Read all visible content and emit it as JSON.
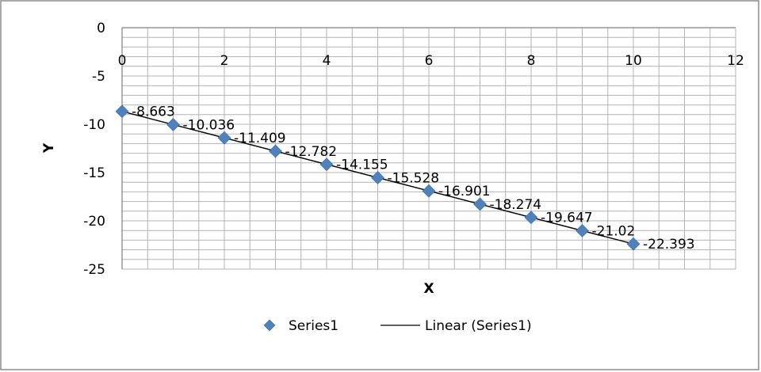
{
  "chart_data": {
    "type": "scatter",
    "title": "",
    "xlabel": "X",
    "ylabel": "Y",
    "xlim": [
      0,
      12
    ],
    "ylim": [
      -25,
      0
    ],
    "x_ticks": [
      "0",
      "2",
      "4",
      "6",
      "8",
      "10",
      "12"
    ],
    "y_ticks": [
      "0",
      "-5",
      "-10",
      "-15",
      "-20",
      "-25"
    ],
    "x_minor_step": 0.5,
    "y_minor_step": 1,
    "grid": true,
    "legend_position": "bottom",
    "series": [
      {
        "name": "Series1",
        "marker": "diamond",
        "color": "#4F81BD",
        "x": [
          0,
          1,
          2,
          3,
          4,
          5,
          6,
          7,
          8,
          9,
          10
        ],
        "y": [
          -8.663,
          -10.036,
          -11.409,
          -12.782,
          -14.155,
          -15.528,
          -16.901,
          -18.274,
          -19.647,
          -21.02,
          -22.393
        ],
        "data_labels": [
          "-8.663",
          "-10.036",
          "-11.409",
          "-12.782",
          "-14.155",
          "-15.528",
          "-16.901",
          "-18.274",
          "-19.647",
          "-21.02",
          "-22.393"
        ]
      }
    ],
    "trendline": {
      "name": "Linear (Series1)",
      "type": "linear",
      "color": "#000000",
      "x": [
        0,
        10
      ],
      "y": [
        -8.663,
        -22.393
      ]
    }
  }
}
